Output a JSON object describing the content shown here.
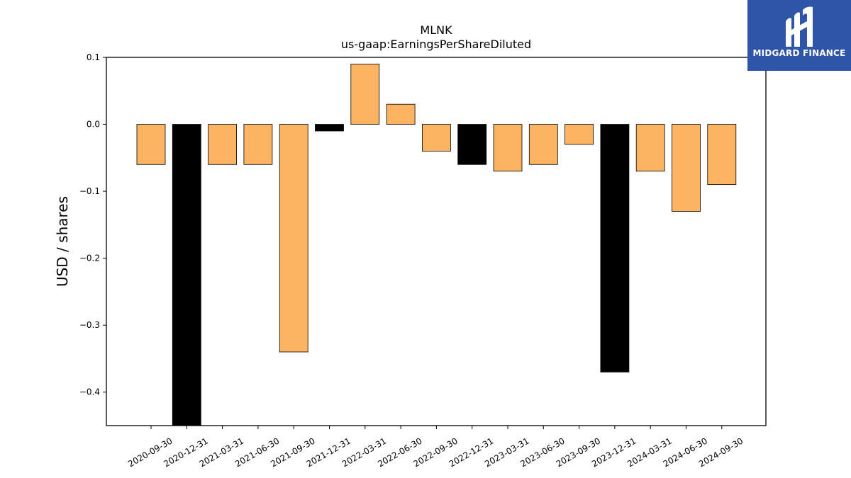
{
  "chart_data": {
    "type": "bar",
    "title": "MLNK",
    "subtitle": "us-gaap:EarningsPerShareDiluted",
    "xlabel": "",
    "ylabel": "USD / shares",
    "ylim": [
      -0.45,
      0.1
    ],
    "yticks": [
      0.1,
      0.0,
      -0.1,
      -0.2,
      -0.3,
      -0.4
    ],
    "ytick_labels": [
      "0.1",
      "0.0",
      "−0.1",
      "−0.2",
      "−0.3",
      "−0.4"
    ],
    "grid": false,
    "categories": [
      "2020-09-30",
      "2020-12-31",
      "2021-03-31",
      "2021-06-30",
      "2021-09-30",
      "2021-12-31",
      "2022-03-31",
      "2022-06-30",
      "2022-09-30",
      "2022-12-31",
      "2023-03-31",
      "2023-06-30",
      "2023-09-30",
      "2023-12-31",
      "2024-03-31",
      "2024-06-30",
      "2024-09-30"
    ],
    "values": [
      -0.06,
      -0.45,
      -0.06,
      -0.06,
      -0.34,
      -0.01,
      0.09,
      0.03,
      -0.04,
      -0.06,
      -0.07,
      -0.06,
      -0.03,
      -0.37,
      -0.07,
      -0.13,
      -0.09
    ],
    "highlight": [
      false,
      true,
      false,
      false,
      false,
      true,
      false,
      false,
      false,
      true,
      false,
      false,
      false,
      true,
      false,
      false,
      false
    ],
    "colors": {
      "normal": "#fdb462",
      "highlight": "#000000",
      "edge": "#000000"
    }
  },
  "logo": {
    "text": "MIDGARD FINANCE",
    "background": "#2f55a8",
    "icon": "midgard-m-icon"
  }
}
